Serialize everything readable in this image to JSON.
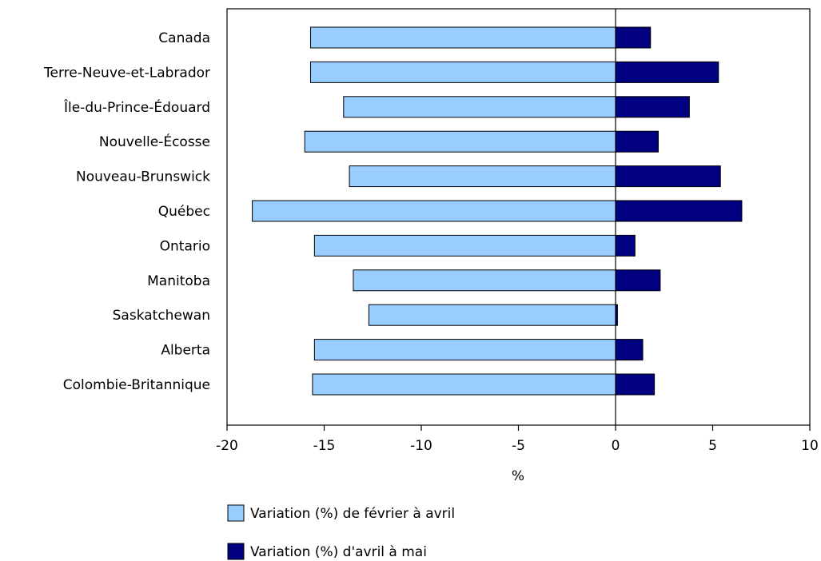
{
  "chart_data": {
    "type": "bar",
    "orientation": "horizontal",
    "categories": [
      "Canada",
      "Terre-Neuve-et-Labrador",
      "Île-du-Prince-Édouard",
      "Nouvelle-Écosse",
      "Nouveau-Brunswick",
      "Québec",
      "Ontario",
      "Manitoba",
      "Saskatchewan",
      "Alberta",
      "Colombie-Britannique"
    ],
    "series": [
      {
        "name": "Variation (%) de février à avril",
        "color": "#99ccff",
        "values": [
          -15.7,
          -15.7,
          -14.0,
          -16.0,
          -13.7,
          -18.7,
          -15.5,
          -13.5,
          -12.7,
          -15.5,
          -15.6
        ]
      },
      {
        "name": "Variation (%) d'avril à mai",
        "color": "#000080",
        "values": [
          1.8,
          5.3,
          3.8,
          2.2,
          5.4,
          6.5,
          1.0,
          2.3,
          0.1,
          1.4,
          2.0
        ]
      }
    ],
    "xlabel": "%",
    "ylabel": "",
    "xlim": [
      -20,
      10
    ],
    "xticks": [
      -20,
      -15,
      -10,
      -5,
      0,
      5,
      10
    ],
    "xtick_labels": [
      "-20",
      "-15",
      "-10",
      "-5",
      "0",
      "5",
      "10"
    ],
    "grid": false,
    "legend_position": "bottom"
  }
}
